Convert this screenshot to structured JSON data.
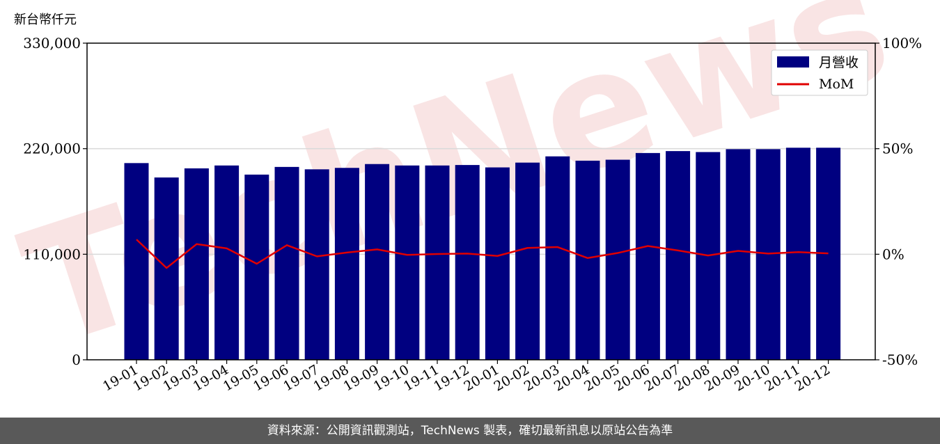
{
  "unit_label": "新台幣仟元",
  "footer_text": "資料來源：公開資訊觀測站，TechNews 製表，確切最新訊息以原站公告為準",
  "colors": {
    "bar": "#000080",
    "line": "#e00000",
    "grid": "#d9d9d9",
    "watermark": "#f2c4c4"
  },
  "chart_data": {
    "type": "bar",
    "categories": [
      "19-01",
      "19-02",
      "19-03",
      "19-04",
      "19-05",
      "19-06",
      "19-07",
      "19-08",
      "19-09",
      "19-10",
      "19-11",
      "19-12",
      "20-01",
      "20-02",
      "20-03",
      "20-04",
      "20-05",
      "20-06",
      "20-07",
      "20-08",
      "20-09",
      "20-10",
      "20-11",
      "20-12"
    ],
    "series": [
      {
        "name": "月營收",
        "type": "bar",
        "axis": "left",
        "values": [
          205000,
          190000,
          199500,
          202500,
          193000,
          201000,
          198500,
          200000,
          204000,
          202500,
          202500,
          203000,
          200500,
          205500,
          212000,
          207500,
          208500,
          215500,
          217500,
          216500,
          219500,
          219500,
          221000,
          221000
        ]
      },
      {
        "name": "MoM",
        "type": "line",
        "axis": "right",
        "values": [
          7.0,
          -6.5,
          4.8,
          2.8,
          -4.5,
          4.3,
          -1.0,
          0.8,
          2.3,
          -0.3,
          0.1,
          0.3,
          -0.8,
          3.0,
          3.4,
          -1.8,
          0.6,
          3.9,
          1.8,
          -0.6,
          1.6,
          0.3,
          1.0,
          0.4
        ]
      }
    ],
    "yticks_left": [
      "0",
      "110,000",
      "220,000",
      "330,000"
    ],
    "yticks_right": [
      "-50%",
      "0%",
      "50%",
      "100%"
    ],
    "ylim_left": [
      0,
      330000
    ],
    "ylim_right": [
      -50,
      100
    ],
    "grid": "horizontal",
    "legend_position": "top-right",
    "watermark": "TechNews"
  }
}
